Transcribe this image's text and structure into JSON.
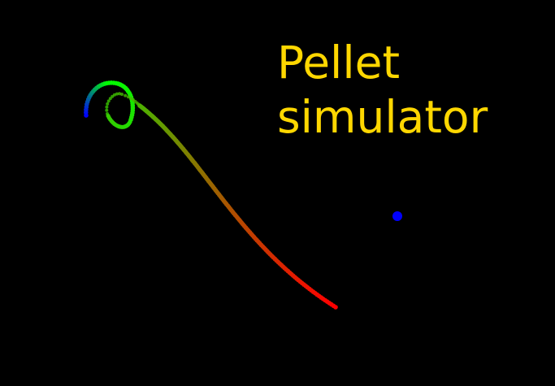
{
  "title": {
    "line1": "Pellet",
    "line2": "simulator",
    "color": "#ffd700"
  },
  "scene": {
    "background_color": "#000000",
    "trail_colors": [
      "#0000ff",
      "#00ff00",
      "#ff0000"
    ],
    "pellet_color": "#0000ff"
  }
}
